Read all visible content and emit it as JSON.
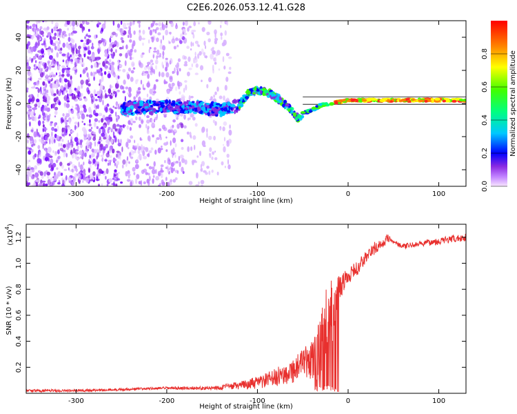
{
  "figure_title": "C2E6.2026.053.12.41.G28",
  "chart_data": [
    {
      "type": "heatmap",
      "title": "C2E6.2026.053.12.41.G28",
      "xlabel": "Height of straight line (km)",
      "ylabel": "Frequency (Hz)",
      "xlim": [
        -355,
        130
      ],
      "ylim": [
        -50,
        50
      ],
      "x_ticks": [
        -300,
        -200,
        -100,
        0,
        100
      ],
      "y_ticks": [
        -40,
        -20,
        0,
        20,
        40
      ],
      "x_tick_labels": [
        "-300",
        "-200",
        "-100",
        "0",
        "100"
      ],
      "y_tick_labels": [
        "-40",
        "-20",
        "0",
        "20",
        "40"
      ],
      "colorbar": {
        "label": "Normalized spectral amplitude",
        "range": [
          0,
          1
        ],
        "ticks": [
          0.0,
          0.2,
          0.4,
          0.6,
          0.8
        ],
        "tick_labels": [
          "0.0",
          "0.2",
          "0.4",
          "0.6",
          "0.8"
        ]
      },
      "ridge": {
        "description_points_x": [
          -250,
          -200,
          -170,
          -140,
          -120,
          -110,
          -100,
          -90,
          -80,
          -70,
          -60,
          -55,
          -50,
          -40,
          -30,
          -20,
          -10,
          0,
          20,
          50,
          100,
          130
        ],
        "description_points_y": [
          -3,
          -2,
          -2,
          -4,
          -1,
          6,
          8,
          7,
          4,
          0,
          -6,
          -9,
          -6,
          -4,
          -1,
          0,
          1,
          2,
          2,
          2,
          2,
          2
        ]
      },
      "horizontal_lines_hz": [
        4,
        -0.5
      ]
    },
    {
      "type": "line",
      "xlabel": "Height of straight line (km)",
      "ylabel": "SNR (10 * v/v)",
      "y_scale_label": "(x10",
      "y_scale_exponent": "4",
      "y_scale_suffix": ")",
      "xlim": [
        -355,
        130
      ],
      "ylim": [
        0,
        1.3
      ],
      "x_ticks": [
        -300,
        -200,
        -100,
        0,
        100
      ],
      "y_ticks": [
        0.2,
        0.4,
        0.6,
        0.8,
        1.0,
        1.2
      ],
      "x_tick_labels": [
        "-300",
        "-200",
        "-100",
        "0",
        "100"
      ],
      "y_tick_labels": [
        "0.2",
        "0.4",
        "0.6",
        "0.8",
        "1.0",
        "1.2"
      ],
      "color": "#e8302e",
      "series": [
        {
          "name": "SNR",
          "x": [
            -355,
            -300,
            -250,
            -200,
            -150,
            -120,
            -100,
            -80,
            -60,
            -40,
            -30,
            -25,
            -20,
            -15,
            -10,
            -5,
            0,
            10,
            20,
            30,
            40,
            42,
            50,
            60,
            80,
            100,
            110,
            130
          ],
          "y": [
            0.02,
            0.02,
            0.03,
            0.04,
            0.04,
            0.06,
            0.08,
            0.12,
            0.18,
            0.26,
            0.35,
            0.5,
            0.62,
            0.68,
            0.8,
            0.86,
            0.9,
            0.96,
            1.05,
            1.12,
            1.15,
            1.2,
            1.17,
            1.13,
            1.15,
            1.17,
            1.18,
            1.2
          ],
          "noise_amplitude": [
            0.01,
            0.01,
            0.01,
            0.01,
            0.015,
            0.03,
            0.05,
            0.07,
            0.1,
            0.15,
            0.25,
            0.3,
            0.3,
            0.22,
            0.12,
            0.08,
            0.06,
            0.06,
            0.05,
            0.05,
            0.03,
            0.03,
            0.02,
            0.02,
            0.02,
            0.03,
            0.03,
            0.03
          ]
        }
      ]
    }
  ]
}
